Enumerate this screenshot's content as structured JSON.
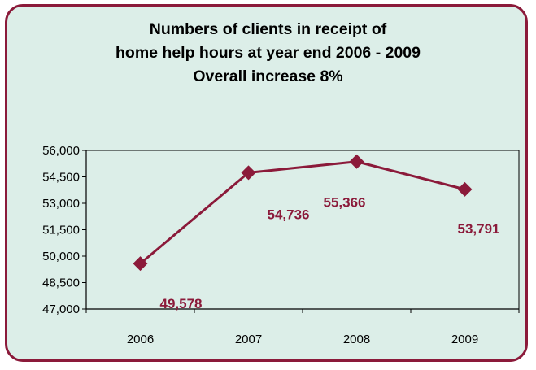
{
  "chart_data": {
    "type": "line",
    "title_lines": [
      "Numbers of clients in receipt of",
      "home help hours at year end 2006 - 2009",
      "Overall increase 8%"
    ],
    "categories": [
      "2006",
      "2007",
      "2008",
      "2009"
    ],
    "values": [
      49578,
      54736,
      55366,
      53791
    ],
    "data_labels": [
      "49,578",
      "54,736",
      "55,366",
      "53,791"
    ],
    "ylim": [
      47000,
      56000
    ],
    "yticks": [
      47000,
      48500,
      50000,
      51500,
      53000,
      54500,
      56000
    ],
    "ytick_labels": [
      "47,000",
      "48,500",
      "50,000",
      "51,500",
      "53,000",
      "54,500",
      "56,000"
    ],
    "grid": false,
    "legend": "none",
    "colors": {
      "series": "#8b1a3a",
      "frame_border": "#8b1a3a",
      "background": "#dceee8"
    }
  }
}
